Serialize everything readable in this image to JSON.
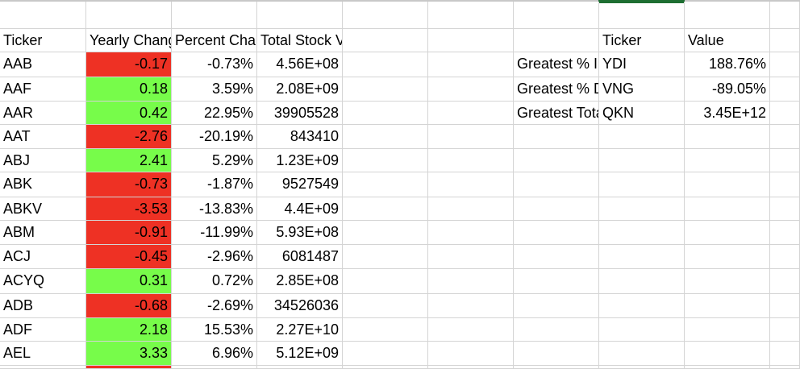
{
  "header": [
    "Ticker",
    "Yearly Change",
    "Percent Change",
    "Total Stock Volumn"
  ],
  "rows": [
    {
      "ticker": "AAB",
      "yearly": "-0.17",
      "percent": "-0.73%",
      "volume": "4.56E+08",
      "status": "negative"
    },
    {
      "ticker": "AAF",
      "yearly": "0.18",
      "percent": "3.59%",
      "volume": "2.08E+09",
      "status": "positive"
    },
    {
      "ticker": "AAR",
      "yearly": "0.42",
      "percent": "22.95%",
      "volume": "39905528",
      "status": "positive"
    },
    {
      "ticker": "AAT",
      "yearly": "-2.76",
      "percent": "-20.19%",
      "volume": "843410",
      "status": "negative"
    },
    {
      "ticker": "ABJ",
      "yearly": "2.41",
      "percent": "5.29%",
      "volume": "1.23E+09",
      "status": "positive"
    },
    {
      "ticker": "ABK",
      "yearly": "-0.73",
      "percent": "-1.87%",
      "volume": "9527549",
      "status": "negative"
    },
    {
      "ticker": "ABKV",
      "yearly": "-3.53",
      "percent": "-13.83%",
      "volume": "4.4E+09",
      "status": "negative"
    },
    {
      "ticker": "ABM",
      "yearly": "-0.91",
      "percent": "-11.99%",
      "volume": "5.93E+08",
      "status": "negative"
    },
    {
      "ticker": "ACJ",
      "yearly": "-0.45",
      "percent": "-2.96%",
      "volume": "6081487",
      "status": "negative"
    },
    {
      "ticker": "ACYQ",
      "yearly": "0.31",
      "percent": "0.72%",
      "volume": "2.85E+08",
      "status": "positive"
    },
    {
      "ticker": "ADB",
      "yearly": "-0.68",
      "percent": "-2.69%",
      "volume": "34526036",
      "status": "negative"
    },
    {
      "ticker": "ADF",
      "yearly": "2.18",
      "percent": "15.53%",
      "volume": "2.27E+10",
      "status": "positive"
    },
    {
      "ticker": "AEL",
      "yearly": "3.33",
      "percent": "6.96%",
      "volume": "5.12E+09",
      "status": "positive"
    }
  ],
  "summary": {
    "header": [
      "Ticker",
      "Value"
    ],
    "rows": [
      {
        "label": "Greatest % Increase",
        "ticker": "YDI",
        "value": "188.76%"
      },
      {
        "label": "Greatest % Decrease",
        "ticker": "VNG",
        "value": "-89.05%"
      },
      {
        "label": "Greatest Total Volume",
        "ticker": "QKN",
        "value": "3.45E+12"
      }
    ]
  },
  "colors": {
    "negative": "#ee3124",
    "positive": "#77fc4a",
    "gridline": "#d4d4d4",
    "selection": "#1e6e32"
  }
}
